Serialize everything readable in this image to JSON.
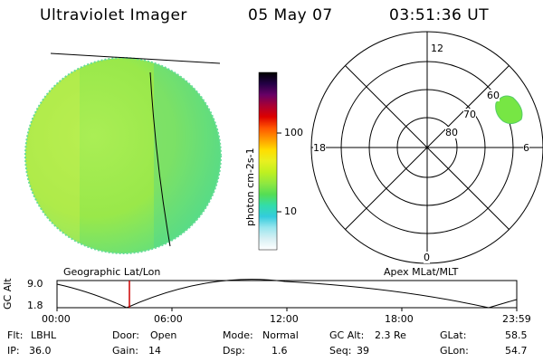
{
  "header": {
    "title": "Ultraviolet Imager",
    "date": "05 May 07",
    "time": "03:51:36 UT"
  },
  "colorbar": {
    "unit_label": "photon cm-2s-1",
    "ticks": [
      "100",
      "10"
    ],
    "colors": [
      "#000000",
      "#220044",
      "#660066",
      "#aa0033",
      "#dd0000",
      "#ff5500",
      "#ff9900",
      "#ffdd00",
      "#e8f020",
      "#bff020",
      "#90e840",
      "#55dd55",
      "#33ddaa",
      "#33ccdd",
      "#99e6ee",
      "#d8f0f4",
      "#ffffff"
    ]
  },
  "left_panel": {
    "caption": "Geographic Lat/Lon",
    "disc_color_center": "#aaee55",
    "disc_color_edge": "#55dd88"
  },
  "polar_plot": {
    "caption": "Apex MLat/MLT",
    "mlt_labels": [
      "12",
      "18",
      "6",
      "0"
    ],
    "lat_labels": [
      "60",
      "70",
      "80"
    ],
    "blob_color": "#77e644"
  },
  "alt_plot": {
    "ylabel": "GC Alt",
    "yticks": [
      "9.0",
      "1.8"
    ],
    "xticks": [
      "00:00",
      "06:00",
      "12:00",
      "18:00",
      "23:59"
    ],
    "current_time_marker_color": "#cc0000"
  },
  "info": {
    "flt_label": "Flt:",
    "flt_value": "LBHL",
    "ip_label": "IP:",
    "ip_value": "36.0",
    "door_label": "Door:",
    "door_value": "Open",
    "gain_label": "Gain:",
    "gain_value": "14",
    "mode_label": "Mode:",
    "mode_value": "Normal",
    "dsp_label": "Dsp:",
    "dsp_value": "1.6",
    "gcalt_label": "GC Alt:",
    "gcalt_value": "2.3 Re",
    "seq_label": "Seq:",
    "seq_value": "39",
    "glat_label": "GLat:",
    "glat_value": "58.5",
    "glon_label": "GLon:",
    "glon_value": "54.7"
  }
}
